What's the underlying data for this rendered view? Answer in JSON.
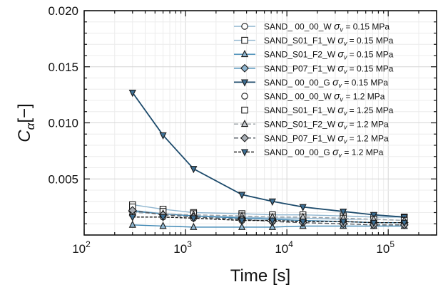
{
  "chart_data": {
    "type": "line",
    "xlabel": "Time [s]",
    "ylabel": "C_α[−]",
    "xscale": "log",
    "xlim": [
      100,
      300000
    ],
    "ylim": [
      0,
      0.02
    ],
    "x_tick_labels": [
      {
        "v": 100,
        "base": "10",
        "exp": "2"
      },
      {
        "v": 1000,
        "base": "10",
        "exp": "3"
      },
      {
        "v": 10000,
        "base": "10",
        "exp": "4"
      },
      {
        "v": 100000,
        "base": "10",
        "exp": "5"
      }
    ],
    "y_tick_labels": [
      {
        "v": 0.005,
        "text": "0.005"
      },
      {
        "v": 0.01,
        "text": "0.010"
      },
      {
        "v": 0.015,
        "text": "0.015"
      },
      {
        "v": 0.02,
        "text": "0.020"
      }
    ],
    "grid": true,
    "legend_position": "upper-right",
    "x": [
      300,
      600,
      1200,
      3600,
      7200,
      14400,
      36000,
      72000,
      144000
    ],
    "series": [
      {
        "name": "SAND_ 00_00_W",
        "stress": "0.15",
        "unit": "MPa",
        "marker": "circle",
        "color": "#8fb5cf",
        "fill": "#ffffff",
        "dash": "",
        "values": [
          0.0022,
          0.0019,
          0.0017,
          0.0016,
          0.0015,
          0.0015,
          0.0014,
          0.0014,
          0.0013
        ]
      },
      {
        "name": "SAND_S01_F1_W",
        "stress": "0.15",
        "unit": "MPa",
        "marker": "square",
        "color": "#8fb5cf",
        "fill": "#ffffff",
        "dash": "",
        "values": [
          0.0027,
          0.0023,
          0.002,
          0.0019,
          0.0018,
          0.0018,
          0.0017,
          0.0016,
          0.0016
        ]
      },
      {
        "name": "SAND_S01_F2_W",
        "stress": "0.15",
        "unit": "MPa",
        "marker": "triangle-up",
        "color": "#3d86b3",
        "fill": "#8fb5cf",
        "dash": "",
        "values": [
          0.0009,
          0.0008,
          0.0007,
          0.0007,
          0.0007,
          0.0008,
          0.0008,
          0.0008,
          0.0008
        ]
      },
      {
        "name": "SAND_P07_F1_W",
        "stress": "0.15",
        "unit": "MPa",
        "marker": "diamond",
        "color": "#3d86b3",
        "fill": "#8fb5cf",
        "dash": "",
        "values": [
          0.0021,
          0.0019,
          0.0017,
          0.0015,
          0.0014,
          0.0013,
          0.0012,
          0.0011,
          0.0011
        ]
      },
      {
        "name": "SAND_ 00_00_G",
        "stress": "0.15",
        "unit": "MPa",
        "marker": "triangle-down",
        "color": "#1c4a6b",
        "fill": "#3d6f94",
        "dash": "",
        "values": [
          0.0127,
          0.0089,
          0.0059,
          0.0036,
          0.003,
          0.0025,
          0.0021,
          0.0018,
          0.0016
        ]
      },
      {
        "name": "SAND_ 00_00_W",
        "stress": "1.2",
        "unit": "MPa",
        "marker": "circle",
        "color": "#ffffff",
        "fill": "#ffffff",
        "dash": "",
        "values": [
          0.0018,
          0.0016,
          0.0015,
          0.0013,
          0.0012,
          0.0012,
          0.0011,
          0.001,
          0.001
        ]
      },
      {
        "name": "SAND_S01_F1_W",
        "stress": "1.25",
        "unit": "MPa",
        "marker": "square",
        "color": "#ffffff",
        "fill": "#ffffff",
        "dash": "",
        "values": [
          0.0025,
          0.0021,
          0.0019,
          0.0017,
          0.0016,
          0.0016,
          0.0015,
          0.0014,
          0.0013
        ]
      },
      {
        "name": "SAND_S01_F2_W",
        "stress": "1.2",
        "unit": "MPa",
        "marker": "triangle-up",
        "color": "#9aa0a6",
        "fill": "#c8ccd0",
        "dash": "6,3",
        "values": [
          0.002,
          0.0019,
          0.0018,
          0.0017,
          0.0016,
          0.0016,
          0.0015,
          0.0014,
          0.0013
        ]
      },
      {
        "name": "SAND_P07_F1_W",
        "stress": "1.2",
        "unit": "MPa",
        "marker": "diamond",
        "color": "#505860",
        "fill": "#a8aeb5",
        "dash": "6,3",
        "values": [
          0.0022,
          0.0018,
          0.0016,
          0.0014,
          0.0012,
          0.0011,
          0.001,
          0.0009,
          0.0009
        ]
      },
      {
        "name": "SAND_ 00_00_G",
        "stress": "1.2",
        "unit": "MPa",
        "marker": "triangle-down",
        "color": "#111111",
        "fill": "#3d6f94",
        "dash": "4,2",
        "values": [
          0.0016,
          0.0016,
          0.0015,
          0.0013,
          0.0013,
          0.0012,
          0.0012,
          0.0011,
          0.0011
        ]
      }
    ]
  }
}
